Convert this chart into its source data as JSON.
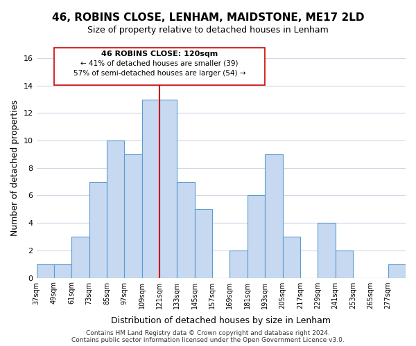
{
  "title": "46, ROBINS CLOSE, LENHAM, MAIDSTONE, ME17 2LD",
  "subtitle": "Size of property relative to detached houses in Lenham",
  "xlabel": "Distribution of detached houses by size in Lenham",
  "ylabel": "Number of detached properties",
  "bin_labels": [
    "37sqm",
    "49sqm",
    "61sqm",
    "73sqm",
    "85sqm",
    "97sqm",
    "109sqm",
    "121sqm",
    "133sqm",
    "145sqm",
    "157sqm",
    "169sqm",
    "181sqm",
    "193sqm",
    "205sqm",
    "217sqm",
    "229sqm",
    "241sqm",
    "253sqm",
    "265sqm",
    "277sqm"
  ],
  "bin_edges": [
    37,
    49,
    61,
    73,
    85,
    97,
    109,
    121,
    133,
    145,
    157,
    169,
    181,
    193,
    205,
    217,
    229,
    241,
    253,
    265,
    277,
    289
  ],
  "counts": [
    1,
    1,
    3,
    7,
    10,
    9,
    13,
    13,
    7,
    5,
    0,
    2,
    6,
    9,
    3,
    0,
    4,
    2,
    0,
    0,
    1
  ],
  "bar_color": "#c6d9f0",
  "bar_edge_color": "#5b9bd5",
  "grid_color": "#d0d8e8",
  "vline_x": 121,
  "vline_color": "#cc0000",
  "annotation_title": "46 ROBINS CLOSE: 120sqm",
  "annotation_line1": "← 41% of detached houses are smaller (39)",
  "annotation_line2": "57% of semi-detached houses are larger (54) →",
  "annotation_box_color": "#ffffff",
  "annotation_box_edge": "#cc0000",
  "ylim": [
    0,
    16
  ],
  "yticks": [
    0,
    2,
    4,
    6,
    8,
    10,
    12,
    14,
    16
  ],
  "footer1": "Contains HM Land Registry data © Crown copyright and database right 2024.",
  "footer2": "Contains public sector information licensed under the Open Government Licence v3.0."
}
